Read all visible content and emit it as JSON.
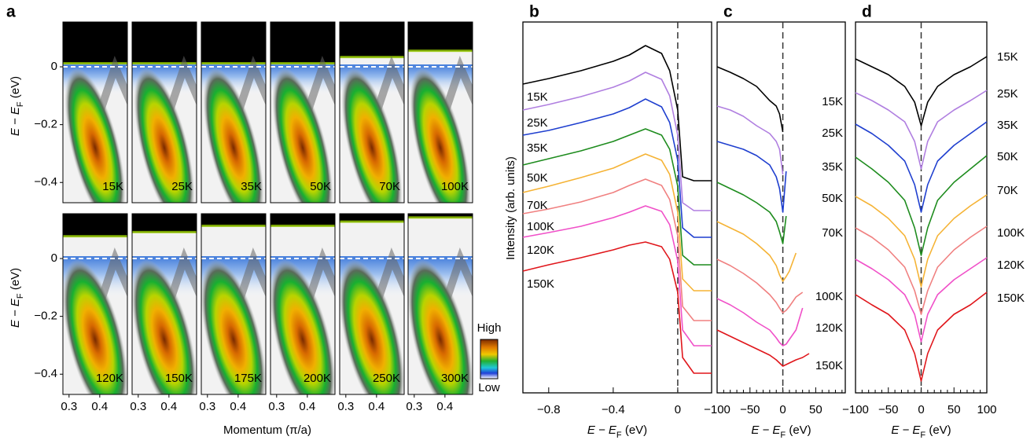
{
  "chart_data": [
    {
      "type": "heatmap",
      "panel_label": "a",
      "ylabel": [
        "E − E",
        "F",
        " (eV)"
      ],
      "xlabel": "Momentum (π/a)",
      "xlim": [
        0.28,
        0.49
      ],
      "xticks": [
        0.3,
        0.4
      ],
      "ylim": [
        -0.47,
        0.155
      ],
      "yticks": [
        0,
        {
          "value": -0.2,
          "label": "−0.2"
        },
        {
          "value": -0.4,
          "label": "−0.4"
        }
      ],
      "panels": [
        "15K",
        "25K",
        "35K",
        "50K",
        "70K",
        "100K",
        "120K",
        "150K",
        "175K",
        "200K",
        "250K",
        "300K"
      ],
      "colorbar": [
        "High",
        "Low"
      ]
    },
    {
      "type": "line",
      "panel_label": "b",
      "ylabel": "Intensity (arb. units)",
      "xlabel": [
        "E − E",
        "F",
        " (eV)"
      ],
      "xlim": [
        -0.96,
        0.21
      ],
      "xticks": [
        {
          "value": -0.8,
          "label": "−0.8"
        },
        {
          "value": -0.4,
          "label": "−0.4"
        },
        0
      ],
      "ylim": [
        0,
        47
      ],
      "zero_line": true,
      "x": [
        -0.96,
        -0.8,
        -0.6,
        -0.4,
        -0.3,
        -0.2,
        -0.1,
        -0.05,
        0,
        0.03,
        0.1,
        0.21
      ],
      "series": [
        {
          "name": "15K",
          "color": "#000000",
          "values": [
            39.3,
            40,
            41,
            42.2,
            43,
            44.2,
            43.2,
            41,
            36,
            27.5,
            27,
            27
          ]
        },
        {
          "name": "25K",
          "color": "#b07fe0",
          "values": [
            36,
            36.7,
            37.7,
            38.9,
            39.7,
            40.8,
            39.9,
            37.8,
            32.8,
            24.2,
            23.2,
            23.2
          ]
        },
        {
          "name": "35K",
          "color": "#1f3fcf",
          "values": [
            32.8,
            33.4,
            34.4,
            35.5,
            36.3,
            37.4,
            36.4,
            34.4,
            29.6,
            21,
            19.8,
            19.8
          ]
        },
        {
          "name": "50K",
          "color": "#1e8c1e",
          "values": [
            29,
            29.8,
            30.8,
            32,
            32.8,
            33.6,
            32.8,
            31,
            26.3,
            17.5,
            16.3,
            16.3
          ]
        },
        {
          "name": "70K",
          "color": "#f5b335",
          "values": [
            25.5,
            26.3,
            27.4,
            28.6,
            29.5,
            30.4,
            29.6,
            27.8,
            23,
            14.5,
            13,
            13
          ]
        },
        {
          "name": "100K",
          "color": "#f08080",
          "values": [
            22.8,
            23.4,
            24.3,
            25.5,
            26.4,
            27.2,
            26.4,
            24.6,
            20,
            11,
            9.2,
            9.2
          ]
        },
        {
          "name": "120K",
          "color": "#f050c8",
          "values": [
            19.8,
            20.4,
            21.2,
            22.3,
            23,
            23.8,
            23.1,
            21.4,
            16.8,
            8,
            6,
            6
          ]
        },
        {
          "name": "150K",
          "color": "#e0161b",
          "values": [
            15.5,
            16.3,
            17.2,
            18.2,
            18.8,
            19.2,
            18.6,
            17,
            12.8,
            4.5,
            2.5,
            2.5
          ]
        }
      ]
    },
    {
      "type": "line",
      "panel_label": "c",
      "xlabel": [
        "E − E",
        "F",
        " (eV)"
      ],
      "xlim": [
        -100,
        95
      ],
      "xticks": [
        {
          "value": -100,
          "label": "−100"
        },
        {
          "value": -50,
          "label": "−50"
        },
        0,
        50
      ],
      "xminor": [
        -90,
        -80,
        -70,
        -60,
        -40,
        -30,
        -20,
        -10,
        10,
        20,
        30,
        40,
        60,
        70,
        80,
        90
      ],
      "ylim": [
        0,
        47
      ],
      "zero_line": true,
      "x": [
        -100,
        -80,
        -60,
        -40,
        -20,
        -10,
        -5,
        0,
        5,
        10,
        20,
        30,
        40
      ],
      "series": [
        {
          "name": "15K",
          "color": "#000000",
          "values": [
            41.5,
            40.8,
            40,
            39,
            37.2,
            36.5,
            35.5,
            33.2,
            null,
            null,
            null,
            null,
            null
          ]
        },
        {
          "name": "25K",
          "color": "#b07fe0",
          "values": [
            36.5,
            36,
            35.2,
            34,
            33,
            32,
            31,
            27.8,
            null,
            null,
            null,
            null,
            null
          ]
        },
        {
          "name": "35K",
          "color": "#1f3fcf",
          "values": [
            32,
            31.5,
            31,
            30.2,
            29,
            27.5,
            26,
            23,
            28.2,
            null,
            null,
            null,
            null
          ]
        },
        {
          "name": "50K",
          "color": "#1e8c1e",
          "values": [
            26.8,
            26,
            25.2,
            24.2,
            23,
            21.8,
            20.5,
            19,
            22.5,
            null,
            null,
            null,
            null
          ]
        },
        {
          "name": "70K",
          "color": "#f5b335",
          "values": [
            21.8,
            21,
            20.2,
            19,
            17.5,
            16.2,
            15,
            14.2,
            14.8,
            15.5,
            17.8,
            null,
            null
          ]
        },
        {
          "name": "100K",
          "color": "#f08080",
          "values": [
            17,
            16.2,
            15.2,
            14,
            12.5,
            11.5,
            10.8,
            10.2,
            10.5,
            11,
            12.2,
            12.8,
            null
          ]
        },
        {
          "name": "120K",
          "color": "#f050c8",
          "values": [
            12,
            11.2,
            10.2,
            9,
            8,
            7,
            6.4,
            6,
            6.2,
            6.8,
            8,
            10.8,
            null
          ]
        },
        {
          "name": "150K",
          "color": "#e0161b",
          "values": [
            8,
            7.2,
            6.4,
            5.6,
            4.8,
            4.2,
            3.8,
            3.4,
            3.6,
            3.8,
            4.2,
            4.5,
            5
          ]
        }
      ]
    },
    {
      "type": "line",
      "panel_label": "d",
      "xlabel": [
        "E − E",
        "F",
        " (eV)"
      ],
      "xlim": [
        -100,
        100
      ],
      "xticks": [
        {
          "value": -100,
          "label": "−100"
        },
        {
          "value": -50,
          "label": "−50"
        },
        0,
        50,
        100
      ],
      "xminor": [
        -90,
        -80,
        -70,
        -60,
        -40,
        -30,
        -20,
        -10,
        10,
        20,
        30,
        40,
        60,
        70,
        80,
        90
      ],
      "ylim": [
        0,
        47
      ],
      "zero_line": true,
      "x": [
        -100,
        -75,
        -50,
        -25,
        -10,
        0,
        10,
        25,
        50,
        75,
        100
      ],
      "series": [
        {
          "name": "15K",
          "color": "#000000",
          "values": [
            42.5,
            41.5,
            40.5,
            39,
            37,
            34,
            37,
            39,
            40.5,
            41.5,
            42.8
          ]
        },
        {
          "name": "25K",
          "color": "#b07fe0",
          "values": [
            38.2,
            37.2,
            36,
            34.5,
            32,
            28.5,
            32,
            34.5,
            36,
            37.2,
            38.5
          ]
        },
        {
          "name": "35K",
          "color": "#1f3fcf",
          "values": [
            34.2,
            33,
            31.5,
            29.5,
            26.5,
            23,
            26.5,
            29.5,
            31.5,
            33,
            34.5
          ]
        },
        {
          "name": "50K",
          "color": "#1e8c1e",
          "values": [
            30,
            28.5,
            26.8,
            24.5,
            21,
            17.5,
            21,
            24.5,
            26.8,
            28.5,
            30.2
          ]
        },
        {
          "name": "70K",
          "color": "#f5b335",
          "values": [
            25,
            23.8,
            22.2,
            20,
            17,
            13.5,
            17,
            20,
            22.2,
            23.8,
            25.2
          ]
        },
        {
          "name": "100K",
          "color": "#f08080",
          "values": [
            21,
            19.8,
            18.2,
            16,
            13,
            10,
            13,
            16,
            18.2,
            19.8,
            21.2
          ]
        },
        {
          "name": "120K",
          "color": "#f050c8",
          "values": [
            17,
            15.8,
            14.4,
            12.5,
            10,
            6.5,
            10,
            12.5,
            14.4,
            15.8,
            17.2
          ]
        },
        {
          "name": "150K",
          "color": "#e0161b",
          "values": [
            12.5,
            11.2,
            10,
            8,
            5,
            1.5,
            5,
            8,
            10,
            11.2,
            12.8
          ]
        }
      ]
    }
  ]
}
